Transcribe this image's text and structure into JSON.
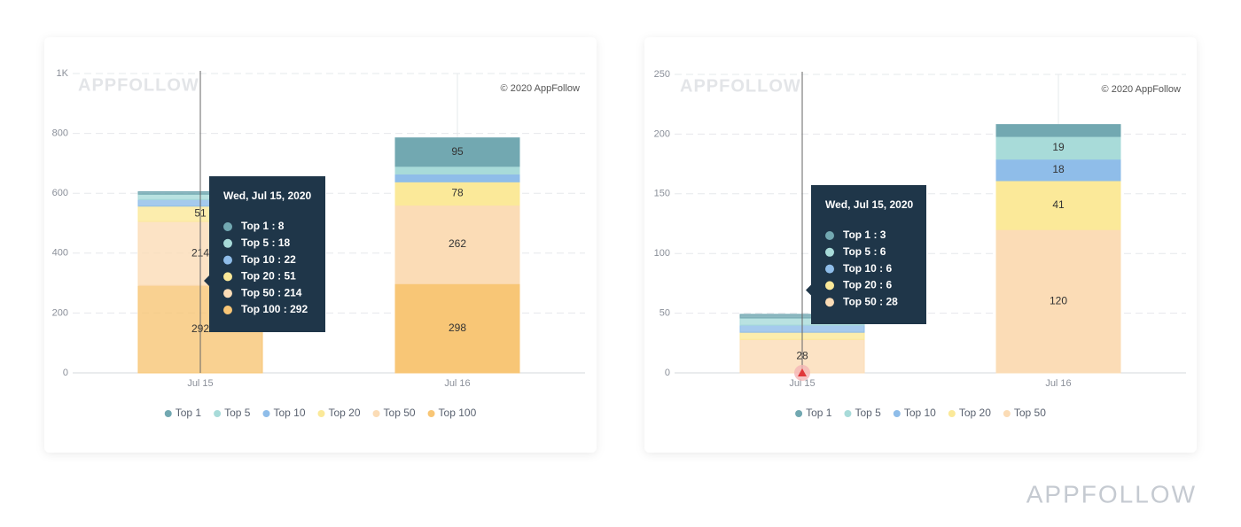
{
  "chart_data": [
    {
      "type": "bar",
      "stacked": true,
      "watermark": "APPFOLLOW",
      "credit": "© 2020 AppFollow",
      "categories": [
        "Jul 15",
        "Jul 16"
      ],
      "series": [
        {
          "name": "Top 1",
          "color": "#72a8b1",
          "values": [
            8,
            95
          ]
        },
        {
          "name": "Top 5",
          "color": "#a8dbd9",
          "values": [
            18,
            26
          ]
        },
        {
          "name": "Top 10",
          "color": "#8fbde9",
          "values": [
            22,
            26
          ]
        },
        {
          "name": "Top 20",
          "color": "#fbe999",
          "values": [
            51,
            78
          ]
        },
        {
          "name": "Top 50",
          "color": "#fbdcb6",
          "values": [
            214,
            262
          ]
        },
        {
          "name": "Top 100",
          "color": "#f8c676",
          "values": [
            292,
            298
          ]
        }
      ],
      "ylim": [
        0,
        1000
      ],
      "yticks": [
        0,
        200,
        400,
        600,
        800,
        {
          "value": 1000,
          "label": "1K"
        }
      ],
      "grid": true,
      "tooltip": {
        "title": "Wed, Jul 15, 2020",
        "items": [
          "Top 1 : 8",
          "Top 5 : 18",
          "Top 10 : 22",
          "Top 20 : 51",
          "Top 50 : 214",
          "Top 100 : 292"
        ]
      }
    },
    {
      "type": "bar",
      "stacked": true,
      "watermark": "APPFOLLOW",
      "credit": "© 2020 AppFollow",
      "categories": [
        "Jul 15",
        "Jul 16"
      ],
      "series": [
        {
          "name": "Top 1",
          "color": "#72a8b1",
          "values": [
            3,
            10
          ]
        },
        {
          "name": "Top 5",
          "color": "#a8dbd9",
          "values": [
            6,
            19
          ]
        },
        {
          "name": "Top 10",
          "color": "#8fbde9",
          "values": [
            6,
            18
          ]
        },
        {
          "name": "Top 20",
          "color": "#fbe999",
          "values": [
            6,
            41
          ]
        },
        {
          "name": "Top 50",
          "color": "#fbdcb6",
          "values": [
            28,
            120
          ]
        }
      ],
      "ylim": [
        0,
        250
      ],
      "yticks": [
        0,
        50,
        100,
        150,
        200,
        250
      ],
      "grid": true,
      "tooltip": {
        "title": "Wed, Jul 15, 2020",
        "items": [
          "Top 1 : 3",
          "Top 5 : 6",
          "Top 10 : 6",
          "Top 20 : 6",
          "Top 50 : 28"
        ]
      }
    }
  ],
  "brand": "APPFOLLOW"
}
